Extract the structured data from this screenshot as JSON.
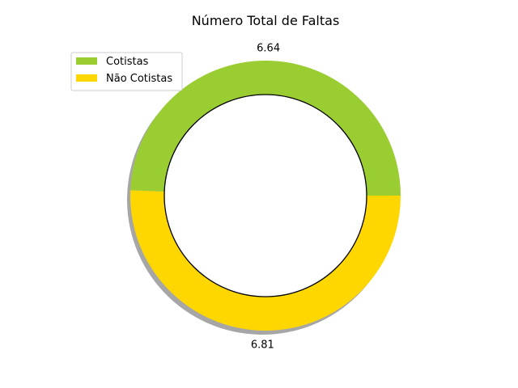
{
  "chart_data": {
    "type": "pie",
    "title": "Número Total de Faltas",
    "donut": true,
    "shadow": true,
    "start_angle_deg": 0,
    "slices": [
      {
        "label": "Cotistas",
        "value": 6.64,
        "display": "6.64",
        "color": "#9acd32"
      },
      {
        "label": "Não Cotistas",
        "value": 6.81,
        "display": "6.81",
        "color": "#ffd700"
      }
    ],
    "legend_position": "top-left"
  }
}
